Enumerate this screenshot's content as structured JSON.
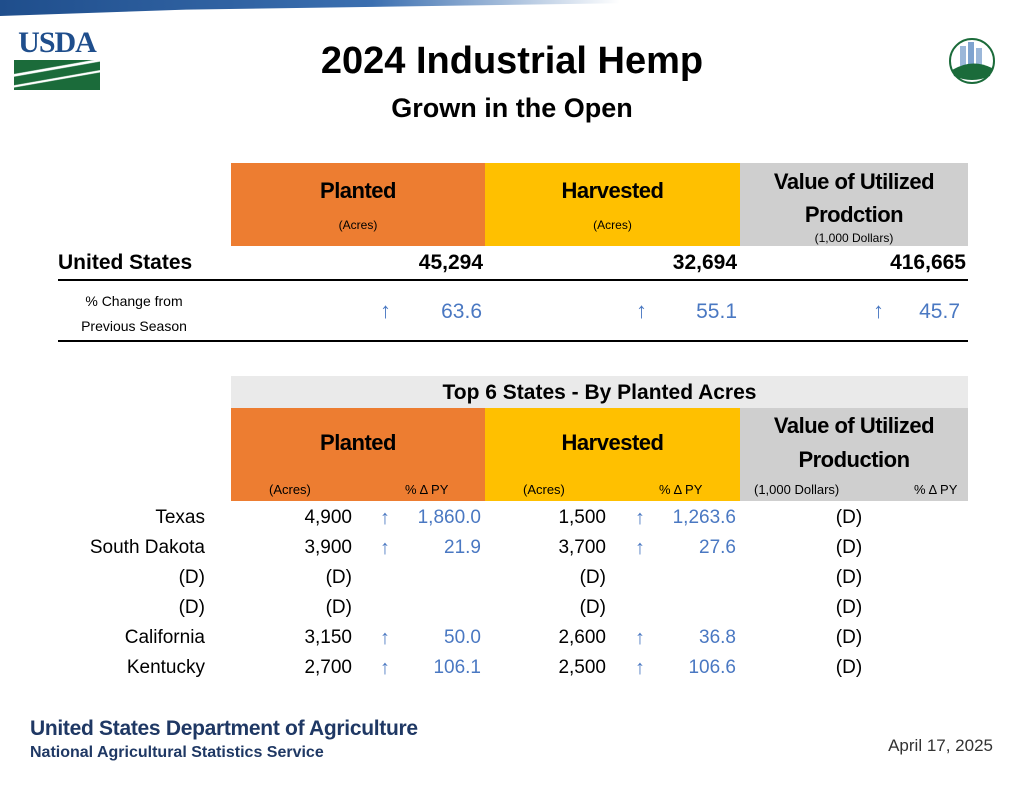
{
  "header": {
    "title": "2024 Industrial Hemp",
    "subtitle": "Grown in the Open",
    "logo_left": "USDA",
    "logo_right": "AGRICULTURE COUNTS"
  },
  "summary": {
    "columns": [
      {
        "label": "Planted",
        "unit": "(Acres)",
        "color": "#ed7d31"
      },
      {
        "label": "Harvested",
        "unit": "(Acres)",
        "color": "#ffc000"
      },
      {
        "label": "Value of Utilized Prodction",
        "unit": "(1,000 Dollars)",
        "color": "#cfcfcf"
      }
    ],
    "us_label": "United States",
    "us_values": [
      "45,294",
      "32,694",
      "416,665"
    ],
    "change_label": "% Change from Previous Season",
    "arrow": "↑",
    "changes": [
      "63.6",
      "55.1",
      "45.7"
    ]
  },
  "top_states": {
    "title": "Top 6 States - By Planted Acres",
    "columns": [
      {
        "label": "Planted",
        "unit": "(Acres)",
        "pct": "% Δ PY"
      },
      {
        "label": "Harvested",
        "unit": "(Acres)",
        "pct": "% Δ PY"
      },
      {
        "label": "Value of Utilized Production",
        "unit": "(1,000 Dollars)",
        "pct": "% Δ PY"
      }
    ],
    "rows": [
      {
        "state": "Texas",
        "planted": "4,900",
        "planted_arrow": "↑",
        "planted_pct": "1,860.0",
        "harvested": "1,500",
        "harvested_arrow": "↑",
        "harvested_pct": "1,263.6",
        "value": "(D)"
      },
      {
        "state": "South Dakota",
        "planted": "3,900",
        "planted_arrow": "↑",
        "planted_pct": "21.9",
        "harvested": "3,700",
        "harvested_arrow": "↑",
        "harvested_pct": "27.6",
        "value": "(D)"
      },
      {
        "state": "(D)",
        "planted": "(D)",
        "planted_arrow": "",
        "planted_pct": "",
        "harvested": "(D)",
        "harvested_arrow": "",
        "harvested_pct": "",
        "value": "(D)"
      },
      {
        "state": "(D)",
        "planted": "(D)",
        "planted_arrow": "",
        "planted_pct": "",
        "harvested": "(D)",
        "harvested_arrow": "",
        "harvested_pct": "",
        "value": "(D)"
      },
      {
        "state": "California",
        "planted": "3,150",
        "planted_arrow": "↑",
        "planted_pct": "50.0",
        "harvested": "2,600",
        "harvested_arrow": "↑",
        "harvested_pct": "36.8",
        "value": "(D)"
      },
      {
        "state": "Kentucky",
        "planted": "2,700",
        "planted_arrow": "↑",
        "planted_pct": "106.1",
        "harvested": "2,500",
        "harvested_arrow": "↑",
        "harvested_pct": "106.6",
        "value": "(D)"
      }
    ]
  },
  "footer": {
    "org": "United States Department of Agriculture",
    "agency": "National Agricultural Statistics Service",
    "date": "April 17, 2025"
  }
}
